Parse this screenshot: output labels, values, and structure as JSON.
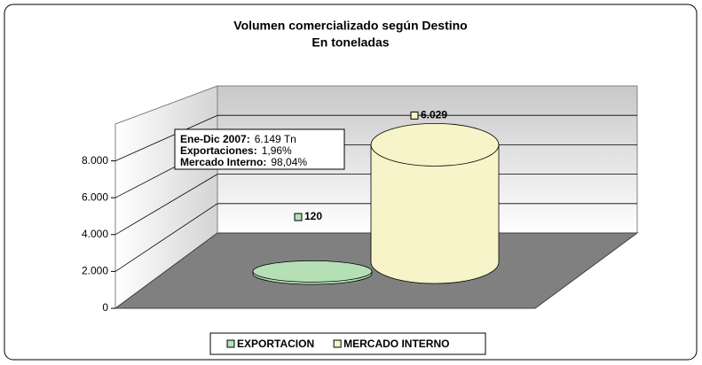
{
  "chart_data": {
    "type": "cylinder",
    "title": "Volumen comercializado según Destino",
    "subtitle": "En toneladas",
    "series": [
      {
        "name": "EXPORTACION",
        "color": "#b5e0b5",
        "values": [
          120
        ],
        "value_labels": [
          "120"
        ]
      },
      {
        "name": "MERCADO INTERNO",
        "color": "#f6f4c8",
        "values": [
          6029
        ],
        "value_labels": [
          "6.029"
        ]
      }
    ],
    "ylim": [
      0,
      10000
    ],
    "yticks": [
      {
        "value": 0,
        "label": "0"
      },
      {
        "value": 2000,
        "label": "2.000"
      },
      {
        "value": 4000,
        "label": "4.000"
      },
      {
        "value": 6000,
        "label": "6.000"
      },
      {
        "value": 8000,
        "label": "8.000"
      }
    ],
    "grid": true,
    "legend": "bottom",
    "annotation": [
      {
        "label": "Ene-Dic 2007:",
        "value": "6.149 Tn"
      },
      {
        "label": "Exportaciones:",
        "value": "1,96%"
      },
      {
        "label": "Mercado Interno:",
        "value": "98,04%"
      }
    ]
  }
}
